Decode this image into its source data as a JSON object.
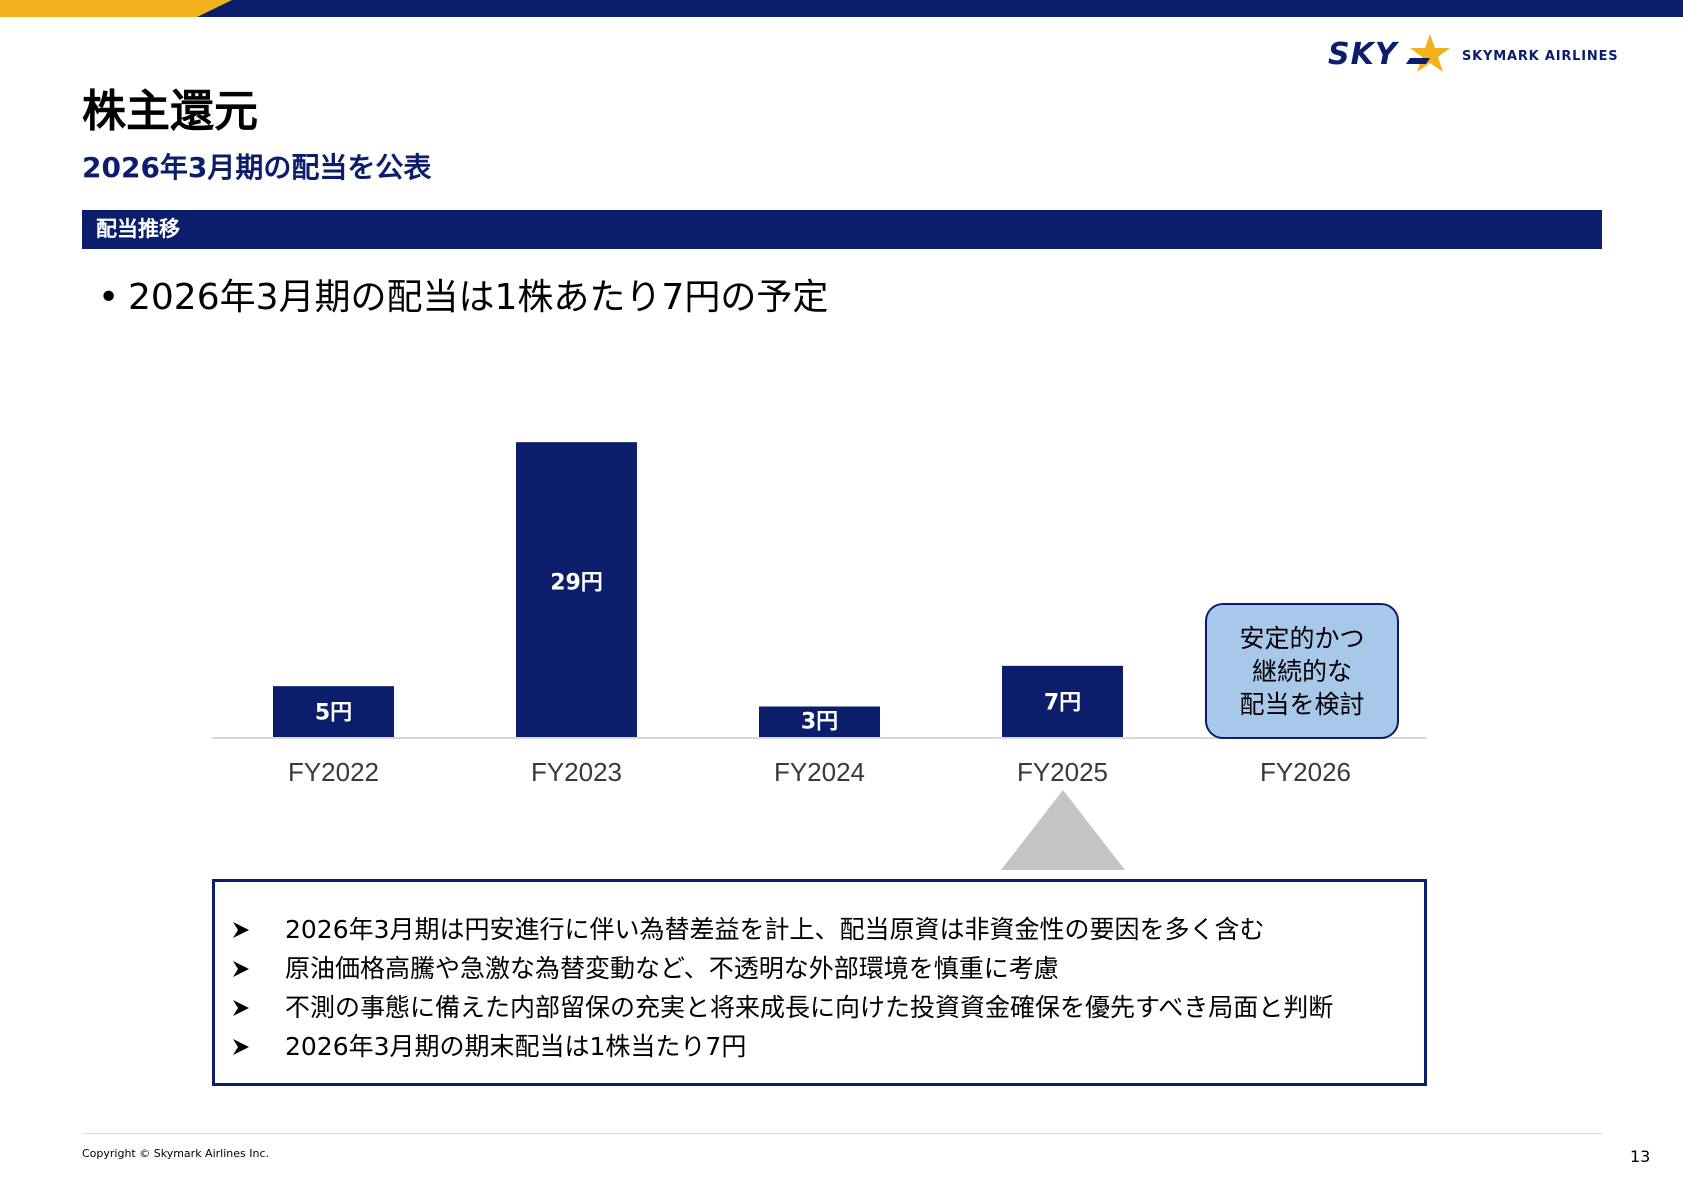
{
  "header": {
    "logo_mark": "SKY",
    "logo_name": "SKYMARK AIRLINES",
    "accent_color": "#f2b21e",
    "brand_color": "#0c1e6b"
  },
  "page": {
    "title": "株主還元",
    "subtitle": "2026年3月期の配当を公表"
  },
  "section": {
    "label": "配当推移"
  },
  "bullet": {
    "marker": "•",
    "text": "2026年3月期の配当は1株あたり7円の予定"
  },
  "chart_data": {
    "type": "bar",
    "categories": [
      "FY2022",
      "FY2023",
      "FY2024",
      "FY2025",
      "FY2026"
    ],
    "values": [
      5,
      29,
      3,
      7,
      null
    ],
    "value_labels": [
      "5円",
      "29円",
      "3円",
      "7円",
      ""
    ],
    "unit": "円",
    "ylim": [
      0,
      30
    ],
    "grid": false,
    "bar_color": "#0c1e6b",
    "annotation": {
      "category": "FY2026",
      "lines": [
        "安定的かつ",
        "継続的な",
        "配当を検討"
      ],
      "fill": "#a8c8ea"
    }
  },
  "notes": {
    "marker_icon": "arrowhead-bullet-icon",
    "items": [
      "2026年3月期は円安進行に伴い為替差益を計上、配当原資は非資金性の要因を多く含む",
      "原油価格高騰や急激な為替変動など、不透明な外部環境を慎重に考慮",
      "不測の事態に備えた内部留保の充実と将来成長に向けた投資資金確保を優先すべき局面と判断",
      "2026年3月期の期末配当は1株当たり7円"
    ]
  },
  "footer": {
    "copyright": "Copyright © Skymark Airlines Inc.",
    "page_number": "13"
  }
}
